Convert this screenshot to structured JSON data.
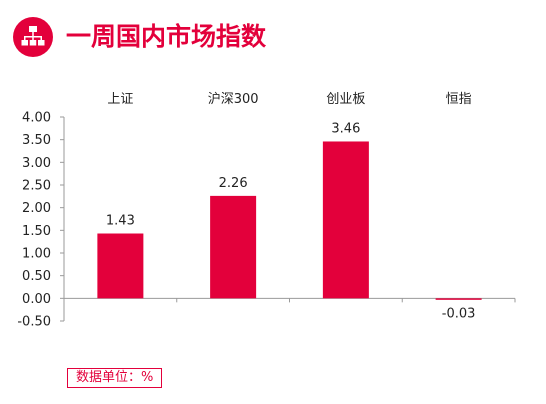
{
  "header": {
    "title": "一周国内市场指数",
    "icon": "org-chart-icon",
    "accent_color": "#e3003b"
  },
  "chart_data": {
    "type": "bar",
    "categories": [
      "上证",
      "沪深300",
      "创业板",
      "恒指"
    ],
    "values": [
      1.43,
      2.26,
      3.46,
      -0.03
    ],
    "value_labels": [
      "1.43",
      "2.26",
      "3.46",
      "-0.03"
    ],
    "title": "",
    "xlabel": "",
    "ylabel": "",
    "ylim": [
      -0.5,
      4.0
    ],
    "yticks": [
      "4.00",
      "3.50",
      "3.00",
      "2.50",
      "2.00",
      "1.50",
      "1.00",
      "0.50",
      "0.00",
      "-0.50"
    ],
    "category_labels_position": "top",
    "grid": false,
    "bar_color": "#e3003b"
  },
  "footer": {
    "unit_label": "数据单位：%"
  }
}
